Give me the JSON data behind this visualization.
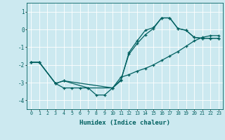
{
  "xlabel": "Humidex (Indice chaleur)",
  "xlim": [
    -0.5,
    23.5
  ],
  "ylim": [
    -4.5,
    1.5
  ],
  "yticks": [
    1,
    0,
    -1,
    -2,
    -3,
    -4
  ],
  "xticks": [
    0,
    1,
    2,
    3,
    4,
    5,
    6,
    7,
    8,
    9,
    10,
    11,
    12,
    13,
    14,
    15,
    16,
    17,
    18,
    19,
    20,
    21,
    22,
    23
  ],
  "bg_color": "#cce9f0",
  "line_color": "#006060",
  "grid_color": "#ffffff",
  "lines": [
    {
      "x": [
        0,
        1,
        3,
        4,
        5,
        6,
        7,
        10,
        11,
        12,
        13,
        14,
        15,
        16,
        17,
        18,
        19,
        20,
        21,
        22,
        23
      ],
      "y": [
        -1.85,
        -1.85,
        -3.05,
        -3.3,
        -3.3,
        -3.3,
        -3.3,
        -3.3,
        -2.9,
        -1.3,
        -0.65,
        -0.05,
        0.1,
        0.65,
        0.65,
        0.05,
        -0.05,
        -0.45,
        -0.5,
        -0.5,
        -0.5
      ]
    },
    {
      "x": [
        0,
        1,
        3,
        4,
        10,
        11,
        12,
        13,
        14,
        15,
        16,
        17,
        18,
        19,
        20,
        21,
        22,
        23
      ],
      "y": [
        -1.85,
        -1.85,
        -3.05,
        -2.9,
        -3.3,
        -2.7,
        -2.55,
        -2.35,
        -2.2,
        -2.0,
        -1.75,
        -1.5,
        -1.25,
        -0.95,
        -0.65,
        -0.45,
        -0.35,
        -0.35
      ]
    },
    {
      "x": [
        0,
        1,
        3,
        4,
        7,
        8,
        9,
        10,
        11,
        12,
        13,
        14,
        15,
        16,
        17,
        18,
        19,
        20,
        21,
        22,
        23
      ],
      "y": [
        -1.85,
        -1.85,
        -3.05,
        -2.9,
        -3.3,
        -3.7,
        -3.7,
        -3.3,
        -2.85,
        -1.4,
        -0.8,
        -0.3,
        0.05,
        0.65,
        0.65,
        0.05,
        -0.05,
        -0.45,
        -0.5,
        -0.5,
        -0.5
      ]
    }
  ]
}
